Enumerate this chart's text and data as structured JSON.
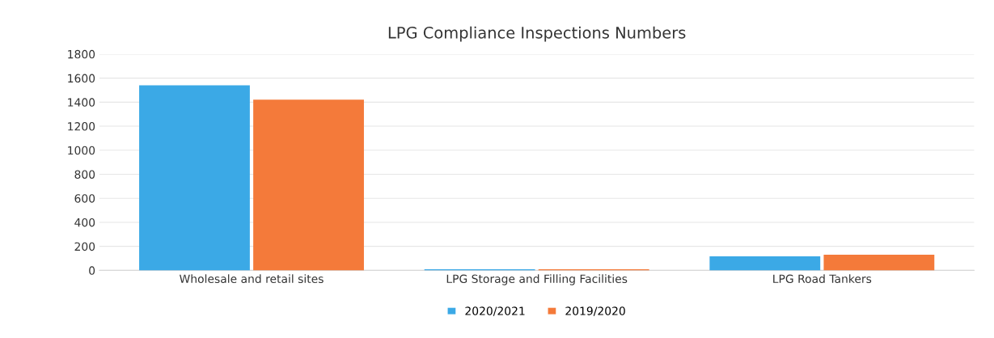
{
  "chart_data": {
    "type": "bar",
    "title": "LPG Compliance Inspections Numbers",
    "categories": [
      "Wholesale and retail sites",
      "LPG Storage and Filling Facilities",
      "LPG Road Tankers"
    ],
    "series": [
      {
        "name": "2020/2021",
        "color": "#3ba9e6",
        "values": [
          1540,
          10,
          117
        ]
      },
      {
        "name": "2019/2020",
        "color": "#f47a3a",
        "values": [
          1420,
          10,
          130
        ]
      }
    ],
    "ylim": [
      0,
      1800
    ],
    "yticks": [
      0,
      200,
      400,
      600,
      800,
      1000,
      1200,
      1400,
      1600,
      1800
    ],
    "grid": "y",
    "legend": "bottom"
  }
}
